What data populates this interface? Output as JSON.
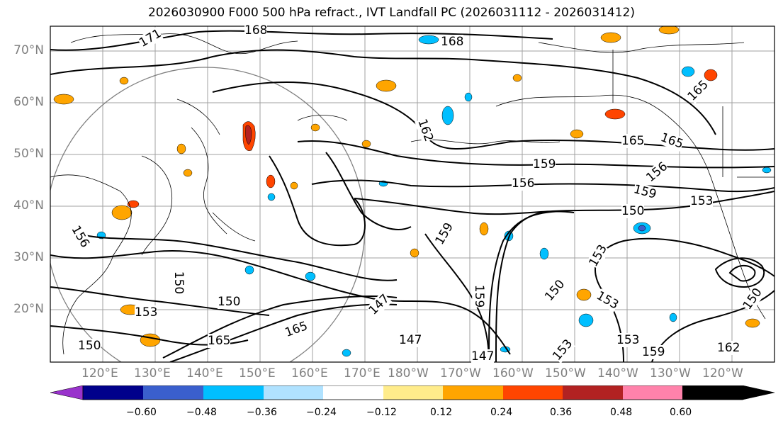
{
  "title": "2026030900 F000 500 hPa refract., IVT Landfall PC (2026031112 - 2026031412)",
  "lat_labels": [
    "70°N",
    "60°N",
    "50°N",
    "40°N",
    "30°N",
    "20°N"
  ],
  "lon_labels": [
    "120°E",
    "130°E",
    "140°E",
    "150°E",
    "160°E",
    "170°E",
    "180°W",
    "170°W",
    "160°W",
    "150°W",
    "140°W",
    "130°W",
    "120°W"
  ],
  "contour_labels": [
    "168",
    "168",
    "171",
    "162",
    "165",
    "165",
    "159",
    "156",
    "156",
    "159",
    "150",
    "153",
    "165",
    "153",
    "159",
    "150",
    "150",
    "156",
    "150",
    "153",
    "150",
    "147",
    "147",
    "147",
    "153",
    "165",
    "165",
    "153",
    "153",
    "159",
    "159",
    "162",
    "150"
  ],
  "colorbar": {
    "ticks": [
      "−0.60",
      "−0.48",
      "−0.36",
      "−0.24",
      "−0.12",
      "0.12",
      "0.24",
      "0.36",
      "0.48",
      "0.60"
    ],
    "colors": [
      "#9932cc",
      "#00008b",
      "#3a5fcd",
      "#00bfff",
      "#b0e2ff",
      "#ffffff",
      "#ffec8b",
      "#ffa500",
      "#ff4500",
      "#b22222",
      "#ff82ab"
    ]
  }
}
